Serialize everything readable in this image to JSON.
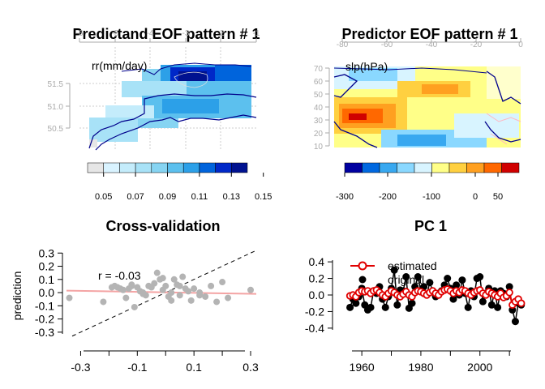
{
  "chart_data": [
    {
      "type": "heatmap",
      "title": "Predictand EOF pattern # 1",
      "unit_label": "rr(mm/day)",
      "x_ticks": [
        "-6",
        "-5",
        "-4",
        "-3",
        "-2",
        "-1"
      ],
      "y_ticks": [
        "51.5",
        "51.0",
        "50.5"
      ],
      "colorbar_labels": [
        "0.05",
        "0.07",
        "0.09",
        "0.11",
        "0.13",
        "0.15"
      ],
      "colorbar_colors": [
        "#e6e6e6",
        "#d9f3ff",
        "#c4ecfb",
        "#a8e2f7",
        "#86d4f2",
        "#5cc0ee",
        "#2ca0e8",
        "#0064dc",
        "#0028c8",
        "#001290"
      ]
    },
    {
      "type": "heatmap",
      "title": "Predictor EOF pattern # 1",
      "unit_label": "slp(hPa)",
      "x_ticks": [
        "-80",
        "-60",
        "-40",
        "-20",
        "0"
      ],
      "y_ticks": [
        "70",
        "60",
        "50",
        "40",
        "30",
        "20",
        "10"
      ],
      "colorbar_labels": [
        "-300",
        "-200",
        "-100",
        "0",
        "50"
      ],
      "colorbar_colors": [
        "#0000a0",
        "#0068e0",
        "#38a8f0",
        "#8ad8ff",
        "#d8f4ff",
        "#ffff88",
        "#ffd040",
        "#ffa020",
        "#ff6800",
        "#d00000"
      ]
    },
    {
      "type": "scatter",
      "title": "Cross-validation",
      "ylabel": "prediction",
      "annotation": "r = -0.03",
      "xlim": [
        -0.35,
        0.32
      ],
      "ylim": [
        -0.35,
        0.32
      ],
      "x_ticks": [
        "-0.3",
        "-0.1",
        "0.1",
        "0.3"
      ],
      "y_ticks": [
        "0.3",
        "0.2",
        "0.1",
        "0.0",
        "-0.1",
        "-0.2",
        "-0.3"
      ],
      "fit_line": [
        [
          -0.35,
          0.015
        ],
        [
          0.32,
          -0.01
        ]
      ],
      "x": [
        -0.34,
        -0.22,
        -0.19,
        -0.18,
        -0.17,
        -0.15,
        -0.14,
        -0.13,
        -0.12,
        -0.11,
        -0.1,
        -0.09,
        -0.08,
        -0.07,
        -0.06,
        -0.05,
        -0.04,
        -0.03,
        -0.02,
        -0.01,
        0.0,
        0.01,
        0.02,
        0.03,
        0.04,
        0.05,
        0.06,
        0.07,
        0.08,
        0.09,
        0.1,
        0.12,
        0.14,
        0.16,
        0.18,
        0.2,
        0.22,
        0.3,
        -0.12,
        -0.08,
        -0.01,
        0.05,
        -0.16,
        0.02,
        0.12
      ],
      "y": [
        -0.04,
        -0.07,
        0.04,
        0.05,
        0.04,
        0.02,
        -0.04,
        0.03,
        0.05,
        -0.11,
        0.04,
        0.01,
        0.0,
        -0.02,
        0.05,
        0.04,
        0.07,
        0.15,
        0.1,
        0.02,
        0.05,
        -0.03,
        0.0,
        0.1,
        0.06,
        -0.02,
        0.12,
        0.03,
        0.01,
        -0.06,
        0.03,
        0.0,
        -0.03,
        0.05,
        -0.07,
        0.08,
        -0.04,
        0.02,
        0.06,
        -0.01,
        0.11,
        0.05,
        0.03,
        -0.06,
        -0.02
      ]
    },
    {
      "type": "line",
      "title": "PC 1",
      "legend": [
        "estimated",
        "original"
      ],
      "xlim": [
        1952,
        2016
      ],
      "ylim": [
        -0.45,
        0.45
      ],
      "x_ticks": [
        "1960",
        "1980",
        "2000"
      ],
      "y_ticks": [
        "0.4",
        "0.2",
        "0.0",
        "-0.2",
        "-0.4"
      ],
      "series": [
        {
          "name": "original",
          "x": [
            1956,
            1957,
            1958,
            1959,
            1960,
            1961,
            1962,
            1963,
            1964,
            1965,
            1966,
            1967,
            1968,
            1969,
            1970,
            1971,
            1972,
            1973,
            1974,
            1975,
            1976,
            1977,
            1978,
            1979,
            1980,
            1981,
            1982,
            1983,
            1984,
            1985,
            1986,
            1987,
            1988,
            1989,
            1990,
            1991,
            1992,
            1993,
            1994,
            1995,
            1996,
            1997,
            1998,
            1999,
            2000,
            2001,
            2002,
            2003,
            2004,
            2005,
            2006,
            2007,
            2008,
            2009,
            2010,
            2011,
            2012,
            2013,
            2014
          ],
          "y": [
            -0.15,
            -0.05,
            -0.1,
            -0.02,
            0.08,
            -0.12,
            -0.18,
            -0.15,
            0.05,
            0.02,
            0.1,
            -0.05,
            -0.15,
            -0.02,
            0.08,
            0.3,
            -0.12,
            0.06,
            0.05,
            0.22,
            -0.16,
            -0.1,
            0.1,
            0.22,
            0.05,
            0.1,
            0.0,
            0.15,
            0.05,
            -0.02,
            0.02,
            0.05,
            0.12,
            0.2,
            0.08,
            -0.05,
            0.12,
            0.0,
            0.18,
            0.02,
            -0.15,
            0.05,
            -0.02,
            0.2,
            0.22,
            -0.08,
            0.02,
            0.08,
            -0.12,
            0.05,
            -0.15,
            0.05,
            0.02,
            -0.02,
            0.1,
            -0.18,
            -0.32,
            -0.1,
            -0.12
          ]
        },
        {
          "name": "estimated",
          "x": [
            1956,
            1957,
            1958,
            1959,
            1960,
            1961,
            1962,
            1963,
            1964,
            1965,
            1966,
            1967,
            1968,
            1969,
            1970,
            1971,
            1972,
            1973,
            1974,
            1975,
            1976,
            1977,
            1978,
            1979,
            1980,
            1981,
            1982,
            1983,
            1984,
            1985,
            1986,
            1987,
            1988,
            1989,
            1990,
            1991,
            1992,
            1993,
            1994,
            1995,
            1996,
            1997,
            1998,
            1999,
            2000,
            2001,
            2002,
            2003,
            2004,
            2005,
            2006,
            2007,
            2008,
            2009,
            2010,
            2011,
            2012,
            2013,
            2014
          ],
          "y": [
            -0.01,
            0.0,
            -0.02,
            0.03,
            0.05,
            0.04,
            0.05,
            0.02,
            0.05,
            0.06,
            0.03,
            0.0,
            -0.02,
            0.02,
            0.05,
            0.03,
            0.0,
            -0.02,
            0.01,
            0.04,
            0.0,
            -0.02,
            0.03,
            0.05,
            0.04,
            0.02,
            0.0,
            0.03,
            0.05,
            0.02,
            0.0,
            0.04,
            0.06,
            0.07,
            0.05,
            0.02,
            0.05,
            0.03,
            0.06,
            0.05,
            0.02,
            0.0,
            0.03,
            0.05,
            0.06,
            0.02,
            0.0,
            0.04,
            0.02,
            0.0,
            -0.02,
            0.02,
            -0.03,
            -0.01,
            0.03,
            -0.12,
            -0.08,
            -0.05,
            -0.1
          ]
        }
      ]
    }
  ]
}
